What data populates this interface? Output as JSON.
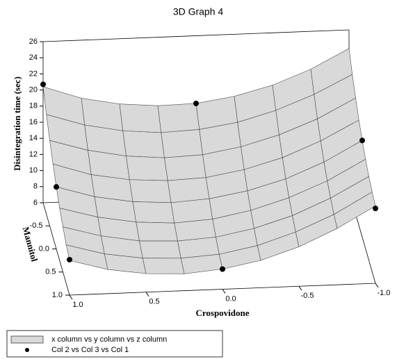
{
  "chart_data": {
    "type": "surface3d",
    "title": "3D Graph 4",
    "xlabel": "Crospovidone",
    "ylabel": "Mannitol",
    "zlabel": "Disintegration time (sec)",
    "xlim": [
      1,
      -1
    ],
    "ylim": [
      -1,
      1
    ],
    "zlim": [
      6,
      26
    ],
    "xticks": [
      {
        "value": 1,
        "label": "1.0"
      },
      0.5,
      {
        "value": 0,
        "label": "0.0"
      },
      -0.5,
      {
        "value": -1,
        "label": "-1.0"
      }
    ],
    "yticks": [
      -0.5,
      {
        "value": 0,
        "label": "0.0"
      },
      0.5,
      {
        "value": 1,
        "label": "1.0"
      }
    ],
    "zticks": [
      6,
      8,
      10,
      12,
      14,
      16,
      18,
      20,
      22,
      24,
      26
    ],
    "surface": {
      "name": "x column vs y column vs z column",
      "color": "#d9d9d9",
      "x": [
        1,
        0.75,
        0.5,
        0.25,
        0,
        -0.25,
        -0.5,
        -0.75,
        -1
      ],
      "y": [
        -1,
        -0.75,
        -0.5,
        -0.25,
        0,
        0.25,
        0.5,
        0.75,
        1
      ],
      "z": [
        [
          20.4,
          18.8,
          17.9,
          17.5,
          17.6,
          18.3,
          19.5,
          21.3,
          23.7
        ],
        [
          18.4,
          16.9,
          16.0,
          15.6,
          15.8,
          16.5,
          17.8,
          19.6,
          21.9
        ],
        [
          16.6,
          15.2,
          14.3,
          13.9,
          14.1,
          14.9,
          16.2,
          18.0,
          20.4
        ],
        [
          15.1,
          13.6,
          12.8,
          12.5,
          12.7,
          13.5,
          14.8,
          16.7,
          19.1
        ],
        [
          13.7,
          12.3,
          11.5,
          11.2,
          11.5,
          12.3,
          13.6,
          15.5,
          18.0
        ],
        [
          12.5,
          11.2,
          10.4,
          10.1,
          10.4,
          11.3,
          12.7,
          14.6,
          17.1
        ],
        [
          11.6,
          10.3,
          9.5,
          9.3,
          9.6,
          10.5,
          11.9,
          13.9,
          16.4
        ],
        [
          10.8,
          9.5,
          8.8,
          8.6,
          8.9,
          9.8,
          11.3,
          13.3,
          15.9
        ],
        [
          10.3,
          9.0,
          8.3,
          8.1,
          8.5,
          9.4,
          10.9,
          13.0,
          15.6
        ]
      ]
    },
    "points": {
      "name": "Col 2 vs Col 3 vs Col 1",
      "color": "#000000",
      "x": [
        1,
        0,
        -1,
        -1,
        0,
        1,
        1
      ],
      "y": [
        -1,
        -1,
        0,
        1,
        1,
        1,
        0
      ],
      "z": [
        20.7,
        17.6,
        18.0,
        15.3,
        8.5,
        10.4,
        13.7
      ]
    }
  }
}
